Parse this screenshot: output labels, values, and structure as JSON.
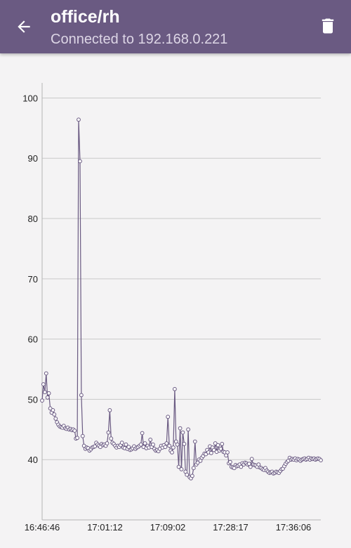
{
  "header": {
    "title": "office/rh",
    "subtitle": "Connected to 192.168.0.221",
    "back_icon": "arrow-left-icon",
    "delete_icon": "trash-icon",
    "background_color": "#6a5a82"
  },
  "chart_data": {
    "type": "line",
    "title": "",
    "xlabel": "",
    "ylabel": "",
    "ylim": [
      30,
      102.5
    ],
    "y_ticks": [
      40,
      50,
      60,
      70,
      80,
      90,
      100
    ],
    "x_tick_labels": [
      "16:46:46",
      "17:01:12",
      "17:09:02",
      "17:28:17",
      "17:36:06"
    ],
    "grid": true,
    "line_color": "#6a5a82",
    "marker_fill": "#ffffff",
    "series": [
      {
        "values": [
          49.8,
          52.5,
          51.2,
          54.3,
          50.3,
          51.0,
          48.5,
          47.8,
          48.2,
          47.5,
          46.8,
          46.2,
          45.8,
          45.5,
          45.4,
          45.3,
          45.6,
          45.2,
          45.1,
          45.3,
          45.0,
          45.1,
          44.9,
          45.0,
          44.8,
          43.5,
          43.6,
          96.4,
          89.5,
          50.7,
          43.9,
          42.3,
          41.8,
          42.0,
          41.9,
          41.5,
          41.7,
          42.0,
          42.1,
          42.2,
          42.8,
          42.5,
          42.3,
          42.1,
          42.6,
          42.4,
          42.5,
          42.3,
          42.7,
          44.5,
          48.2,
          43.5,
          42.8,
          42.6,
          42.3,
          42.0,
          42.3,
          42.1,
          42.4,
          42.8,
          42.0,
          41.9,
          42.5,
          41.8,
          42.1,
          41.6,
          41.7,
          41.9,
          42.2,
          41.8,
          42.0,
          42.1,
          42.3,
          42.5,
          44.4,
          42.1,
          42.7,
          41.9,
          42.3,
          42.0,
          43.3,
          42.1,
          42.5,
          41.8,
          41.5,
          41.6,
          41.4,
          41.8,
          42.3,
          42.0,
          42.4,
          42.1,
          42.7,
          47.1,
          42.3,
          41.5,
          41.2,
          42.0,
          51.7,
          43.0,
          42.5,
          38.8,
          45.2,
          38.4,
          44.5,
          42.6,
          38.0,
          37.5,
          45.0,
          37.1,
          36.9,
          37.3,
          38.6,
          43.0,
          39.2,
          39.5,
          40.0,
          39.8,
          40.3,
          40.6,
          41.0,
          40.9,
          41.6,
          41.2,
          42.2,
          41.1,
          42.0,
          41.6,
          42.7,
          41.3,
          42.4,
          41.5,
          41.8,
          42.6,
          41.3,
          41.2,
          40.7,
          41.2,
          39.4,
          39.6,
          38.8,
          38.7,
          38.6,
          39.1,
          38.9,
          39.0,
          39.2,
          38.8,
          39.4,
          39.2,
          39.5,
          39.4,
          39.2,
          39.3,
          38.8,
          40.1,
          39.2,
          39.1,
          39.0,
          38.8,
          39.2,
          38.7,
          38.6,
          38.4,
          38.3,
          38.6,
          38.2,
          38.0,
          37.8,
          37.9,
          38.0,
          37.7,
          37.8,
          38.0,
          37.9,
          37.8,
          38.1,
          38.4,
          38.5,
          38.9,
          39.3,
          39.6,
          39.8,
          40.3,
          40.0,
          40.1,
          40.0,
          40.2,
          39.9,
          40.1,
          40.0,
          39.8,
          40.0,
          40.1,
          40.2,
          40.0,
          40.1,
          40.3,
          40.0,
          40.2,
          40.1,
          40.2,
          40.0,
          40.1,
          40.2,
          40.1,
          39.9
        ]
      }
    ]
  }
}
